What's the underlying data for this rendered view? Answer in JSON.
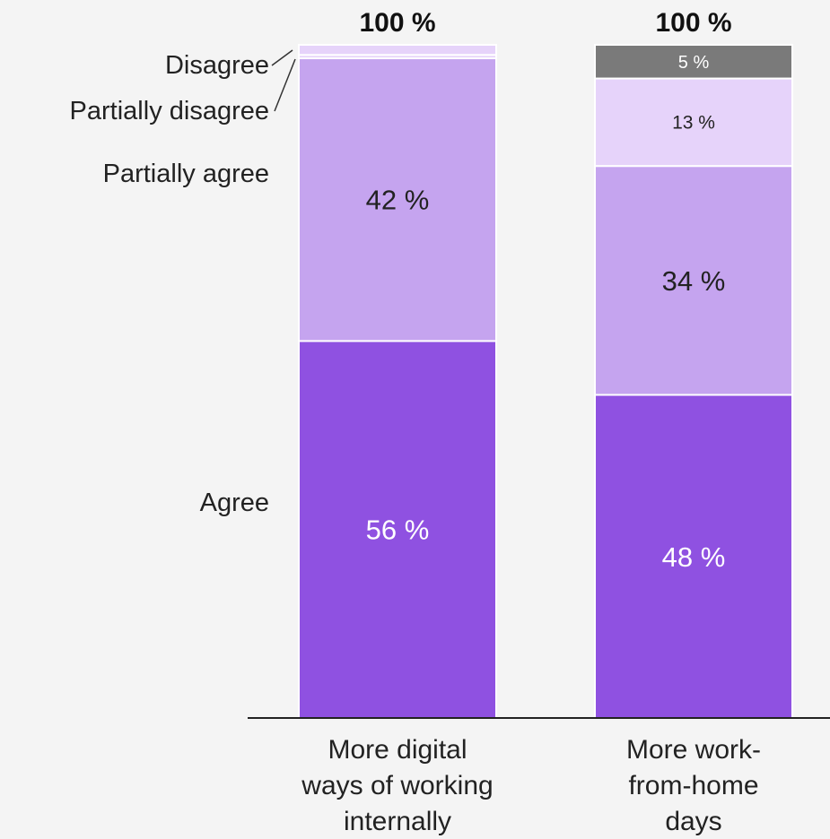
{
  "chart_data": {
    "type": "bar",
    "stacked": true,
    "categories": [
      "More digital ways of working internally",
      "More work-from-home days"
    ],
    "category_lines": [
      [
        "More digital",
        "ways of working",
        "internally"
      ],
      [
        "More work-",
        "from-home",
        "days"
      ]
    ],
    "totals": [
      "100 %",
      "100 %"
    ],
    "series": [
      {
        "name": "Agree",
        "values": [
          56,
          48
        ],
        "labels": [
          "56 %",
          "48 %"
        ],
        "color": "#8f51e1",
        "label_color": "#ffffff"
      },
      {
        "name": "Partially agree",
        "values": [
          42,
          34
        ],
        "labels": [
          "42 %",
          "34 %"
        ],
        "color": "#c5a4ef",
        "label_color": "#222222"
      },
      {
        "name": "Partially disagree",
        "values": [
          0.5,
          13
        ],
        "labels": [
          "",
          "13 %"
        ],
        "color": "#e6d3fa",
        "label_color": "#222222"
      },
      {
        "name": "Disagree",
        "values": [
          1.5,
          5
        ],
        "labels": [
          "",
          "5 %"
        ],
        "color_first": "#e6d3fa",
        "color": "#7a7a7a",
        "label_color": "#ffffff"
      }
    ],
    "ylim": [
      0,
      100
    ]
  }
}
